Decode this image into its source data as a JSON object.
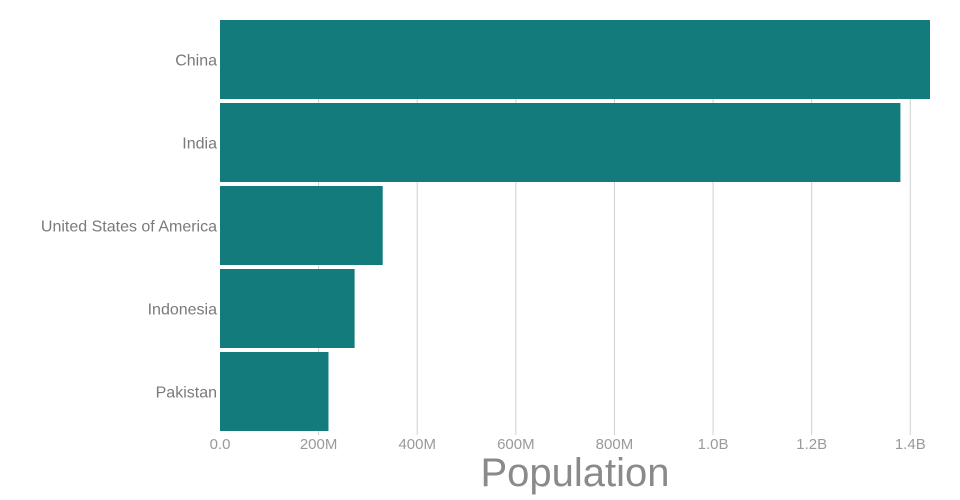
{
  "chart_data": {
    "type": "bar",
    "orientation": "horizontal",
    "categories": [
      "China",
      "India",
      "United States of America",
      "Indonesia",
      "Pakistan"
    ],
    "values": [
      1440000000,
      1380000000,
      330000000,
      273000000,
      220000000
    ],
    "xlabel": "Population",
    "ylabel": "",
    "xlim": [
      0,
      1440000000
    ],
    "x_ticks": [
      {
        "value": 0,
        "label": "0.0"
      },
      {
        "value": 200000000,
        "label": "200M"
      },
      {
        "value": 400000000,
        "label": "400M"
      },
      {
        "value": 600000000,
        "label": "600M"
      },
      {
        "value": 800000000,
        "label": "800M"
      },
      {
        "value": 1000000000,
        "label": "1.0B"
      },
      {
        "value": 1200000000,
        "label": "1.2B"
      },
      {
        "value": 1400000000,
        "label": "1.4B"
      }
    ],
    "grid": true,
    "colors": {
      "bar": "#137b7c",
      "grid": "#cfcfcf"
    }
  }
}
